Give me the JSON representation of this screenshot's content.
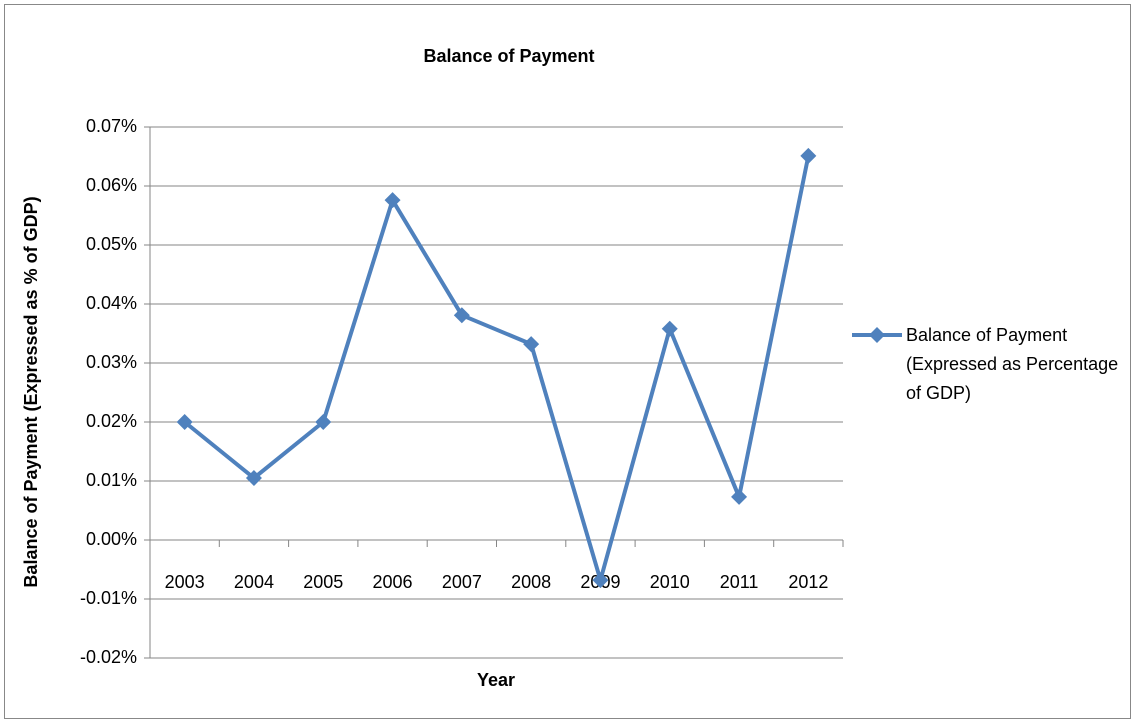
{
  "chart_data": {
    "type": "line",
    "title": "Balance of Payment",
    "x_label": "Year",
    "y_label": "Balance of Payment (Expressed as % of GDP)",
    "categories": [
      "2003",
      "2004",
      "2005",
      "2006",
      "2007",
      "2008",
      "2009",
      "2010",
      "2011",
      "2012"
    ],
    "series": [
      {
        "name": "Balance of Payment (Expressed as Percentage of GDP)",
        "color": "#4f81bd",
        "values": [
          0.02,
          0.0105,
          0.02,
          0.0576,
          0.0381,
          0.0332,
          -0.0068,
          0.0358,
          0.0073,
          0.0651
        ]
      }
    ],
    "ylim": [
      -0.02,
      0.07
    ],
    "yticks": [
      {
        "value": -0.02,
        "label": "-0.02%"
      },
      {
        "value": -0.01,
        "label": "-0.01%"
      },
      {
        "value": 0,
        "label": "0.00%"
      },
      {
        "value": 0.01,
        "label": "0.01%"
      },
      {
        "value": 0.02,
        "label": "0.02%"
      },
      {
        "value": 0.03,
        "label": "0.03%"
      },
      {
        "value": 0.04,
        "label": "0.04%"
      },
      {
        "value": 0.05,
        "label": "0.05%"
      },
      {
        "value": 0.06,
        "label": "0.06%"
      },
      {
        "value": 0.07,
        "label": "0.07%"
      }
    ],
    "grid": true,
    "legend": "right"
  }
}
